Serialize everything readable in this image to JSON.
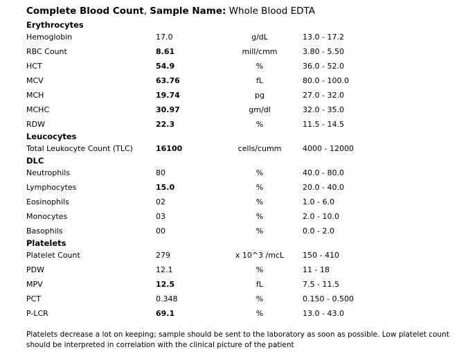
{
  "title": {
    "report_name": "Complete Blood Count",
    "separator": ", ",
    "sample_label": "Sample Name:",
    "sample_value": " Whole Blood EDTA"
  },
  "sections": [
    {
      "name": "Erythrocytes",
      "rows": [
        {
          "label": "Hemoglobin",
          "value": "17.0",
          "value_bold": false,
          "unit": "g/dL",
          "range": "13.0 - 17.2"
        },
        {
          "label": "RBC Count",
          "value": "8.61",
          "value_bold": true,
          "unit": "mill/cmm",
          "range": "3.80 - 5.50"
        },
        {
          "label": "HCT",
          "value": "54.9",
          "value_bold": true,
          "unit": "%",
          "range": "36.0 - 52.0"
        },
        {
          "label": "MCV",
          "value": "63.76",
          "value_bold": true,
          "unit": "fL",
          "range": "80.0 - 100.0"
        },
        {
          "label": "MCH",
          "value": "19.74",
          "value_bold": true,
          "unit": "pg",
          "range": "27.0 - 32.0"
        },
        {
          "label": "MCHC",
          "value": "30.97",
          "value_bold": true,
          "unit": "gm/dl",
          "range": "32.0 - 35.0"
        },
        {
          "label": "RDW",
          "value": "22.3",
          "value_bold": true,
          "unit": "%",
          "range": "11.5 - 14.5"
        }
      ]
    },
    {
      "name": "Leucocytes",
      "rows": [
        {
          "label": "Total Leukocyte Count (TLC)",
          "value": "16100",
          "value_bold": true,
          "unit": "cells/cumm",
          "range": "4000 - 12000"
        }
      ]
    },
    {
      "name": "DLC",
      "rows": [
        {
          "label": "Neutrophils",
          "value": "80",
          "value_bold": false,
          "unit": "%",
          "range": "40.0 - 80.0"
        },
        {
          "label": "Lymphocytes",
          "value": "15.0",
          "value_bold": true,
          "unit": "%",
          "range": "20.0 - 40.0"
        },
        {
          "label": "Eosinophils",
          "value": "02",
          "value_bold": false,
          "unit": "%",
          "range": "1.0 - 6.0"
        },
        {
          "label": "Monocytes",
          "value": "03",
          "value_bold": false,
          "unit": "%",
          "range": "2.0 - 10.0"
        },
        {
          "label": "Basophils",
          "value": "00",
          "value_bold": false,
          "unit": "%",
          "range": "0.0 - 2.0"
        }
      ]
    },
    {
      "name": "Platelets",
      "rows": [
        {
          "label": "Platelet Count",
          "value": "279",
          "value_bold": false,
          "unit": "x 10^3 /mcL",
          "range": "150 - 410"
        },
        {
          "label": "PDW",
          "value": "12.1",
          "value_bold": false,
          "unit": "%",
          "range": "11 - 18"
        },
        {
          "label": "MPV",
          "value": "12.5",
          "value_bold": true,
          "unit": "fL",
          "range": "7.5 - 11.5"
        },
        {
          "label": "PCT",
          "value": "0.348",
          "value_bold": false,
          "unit": "%",
          "range": "0.150 - 0.500"
        },
        {
          "label": "P-LCR",
          "value": "69.1",
          "value_bold": true,
          "unit": "%",
          "range": "13.0 - 43.0"
        }
      ]
    }
  ],
  "footer_note": "Platelets decrease a lot on keeping; sample should be sent to the laboratory as soon as possible. Low platelet count should be interpreted in correlation with the clinical picture of the patient"
}
